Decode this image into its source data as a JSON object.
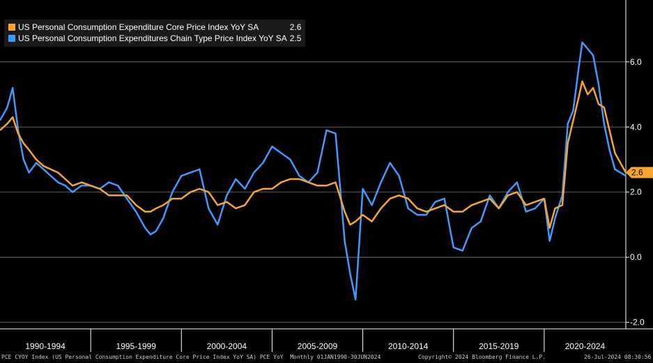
{
  "colors": {
    "background": "#000000",
    "core": "#f7a52d",
    "headline": "#3d9bff",
    "grid": "#808080",
    "axis": "#ffffff",
    "legend_bg": "#1a1a1a"
  },
  "legend": {
    "items": [
      {
        "label": "US Personal Consumption Expenditure Core Price Index YoY SA",
        "value": "2.6",
        "color": "#f7a52d"
      },
      {
        "label": "US Personal Consumption Expenditures Chain Type Price Index YoY SA",
        "value": "2.5",
        "color": "#3d9bff"
      }
    ]
  },
  "last_value_label": "2.6",
  "footer": {
    "left": "PCE CYOY Index (US Personal Consumption Expenditure Core Price Index YoY SA) PCE YoY  Monthly 01JAN1990-30JUN2024",
    "center": "Copyright© 2024 Bloomberg Finance L.P.",
    "right": "26-Jul-2024 08:30:56"
  },
  "chart_data": {
    "type": "line",
    "title": "",
    "xlabel": "",
    "ylabel": "",
    "ylim": [
      -2.2,
      7.9
    ],
    "xlim": [
      1990.0,
      2024.5
    ],
    "grid": true,
    "legend_position": "top-left",
    "y_ticks": [
      6.0,
      4.0,
      2.0,
      0.0,
      -2.0
    ],
    "y_tick_labels": [
      "6.0",
      "4.0",
      "2.0",
      "0.0",
      "-2.0"
    ],
    "x_period_labels": [
      "1990-1994",
      "1995-1999",
      "2000-2004",
      "2005-2009",
      "2010-2014",
      "2015-2019",
      "2020-2024"
    ],
    "x_period_bounds": [
      1990,
      1995,
      2000,
      2005,
      2010,
      2015,
      2020,
      2024.5
    ],
    "series": [
      {
        "name": "US Personal Consumption Expenditure Core Price Index YoY SA",
        "color": "#f7a52d",
        "x": [
          1990.0,
          1990.4,
          1990.7,
          1991.0,
          1991.3,
          1991.6,
          1992.0,
          1992.4,
          1992.8,
          1993.2,
          1993.6,
          1994.0,
          1994.5,
          1995.0,
          1995.5,
          1996.0,
          1996.5,
          1997.0,
          1997.5,
          1998.0,
          1998.3,
          1998.6,
          1999.0,
          1999.5,
          2000.0,
          2000.5,
          2001.0,
          2001.5,
          2002.0,
          2002.5,
          2003.0,
          2003.5,
          2004.0,
          2004.5,
          2005.0,
          2005.5,
          2006.0,
          2006.5,
          2007.0,
          2007.5,
          2008.0,
          2008.5,
          2009.0,
          2009.3,
          2009.6,
          2010.0,
          2010.5,
          2011.0,
          2011.5,
          2012.0,
          2012.5,
          2013.0,
          2013.5,
          2014.0,
          2014.5,
          2015.0,
          2015.5,
          2016.0,
          2016.5,
          2017.0,
          2017.5,
          2018.0,
          2018.5,
          2019.0,
          2019.5,
          2020.0,
          2020.3,
          2020.6,
          2021.0,
          2021.3,
          2021.6,
          2021.9,
          2022.1,
          2022.4,
          2022.7,
          2023.0,
          2023.3,
          2023.6,
          2023.9,
          2024.2,
          2024.5
        ],
        "values": [
          3.9,
          4.1,
          4.3,
          3.8,
          3.5,
          3.3,
          3.0,
          2.8,
          2.7,
          2.6,
          2.4,
          2.2,
          2.3,
          2.2,
          2.1,
          1.9,
          1.9,
          1.9,
          1.6,
          1.4,
          1.4,
          1.5,
          1.6,
          1.8,
          1.8,
          2.0,
          2.1,
          2.0,
          1.6,
          1.7,
          1.5,
          1.6,
          2.0,
          2.1,
          2.1,
          2.3,
          2.4,
          2.4,
          2.3,
          2.2,
          2.2,
          2.3,
          1.4,
          1.0,
          1.1,
          1.3,
          1.1,
          1.5,
          1.8,
          1.9,
          1.8,
          1.5,
          1.4,
          1.5,
          1.6,
          1.4,
          1.4,
          1.6,
          1.7,
          1.8,
          1.5,
          1.9,
          2.0,
          1.6,
          1.7,
          1.8,
          0.9,
          1.5,
          1.6,
          3.5,
          4.2,
          4.9,
          5.4,
          5.0,
          5.2,
          4.7,
          4.6,
          3.9,
          3.2,
          2.9,
          2.6
        ]
      },
      {
        "name": "US Personal Consumption Expenditures Chain Type Price Index YoY SA",
        "color": "#3d9bff",
        "x": [
          1990.0,
          1990.4,
          1990.7,
          1991.0,
          1991.3,
          1991.6,
          1992.0,
          1992.4,
          1992.8,
          1993.2,
          1993.6,
          1994.0,
          1994.5,
          1995.0,
          1995.5,
          1996.0,
          1996.5,
          1997.0,
          1997.5,
          1998.0,
          1998.3,
          1998.6,
          1999.0,
          1999.5,
          2000.0,
          2000.5,
          2001.0,
          2001.5,
          2002.0,
          2002.5,
          2003.0,
          2003.5,
          2004.0,
          2004.5,
          2005.0,
          2005.5,
          2006.0,
          2006.5,
          2007.0,
          2007.5,
          2008.0,
          2008.5,
          2009.0,
          2009.3,
          2009.6,
          2010.0,
          2010.5,
          2011.0,
          2011.5,
          2012.0,
          2012.5,
          2013.0,
          2013.5,
          2014.0,
          2014.5,
          2015.0,
          2015.5,
          2016.0,
          2016.5,
          2017.0,
          2017.5,
          2018.0,
          2018.5,
          2019.0,
          2019.5,
          2020.0,
          2020.3,
          2020.6,
          2021.0,
          2021.3,
          2021.6,
          2021.9,
          2022.1,
          2022.4,
          2022.7,
          2023.0,
          2023.3,
          2023.6,
          2023.9,
          2024.2,
          2024.5
        ],
        "values": [
          4.2,
          4.6,
          5.2,
          3.9,
          3.0,
          2.6,
          2.9,
          2.7,
          2.5,
          2.3,
          2.2,
          2.0,
          2.2,
          2.2,
          2.1,
          2.3,
          2.2,
          1.8,
          1.4,
          0.9,
          0.7,
          0.8,
          1.2,
          2.0,
          2.5,
          2.6,
          2.7,
          1.5,
          1.0,
          1.9,
          2.4,
          2.1,
          2.6,
          2.9,
          3.4,
          3.2,
          3.0,
          2.5,
          2.3,
          2.6,
          3.9,
          3.8,
          0.5,
          -0.5,
          -1.3,
          2.1,
          1.6,
          2.3,
          2.9,
          2.5,
          1.5,
          1.3,
          1.3,
          1.7,
          1.8,
          0.3,
          0.2,
          0.9,
          1.1,
          1.9,
          1.5,
          2.0,
          2.3,
          1.4,
          1.5,
          1.8,
          0.5,
          1.2,
          1.9,
          4.1,
          4.5,
          5.8,
          6.6,
          6.4,
          6.2,
          5.3,
          4.1,
          3.3,
          2.7,
          2.6,
          2.5
        ]
      }
    ]
  }
}
